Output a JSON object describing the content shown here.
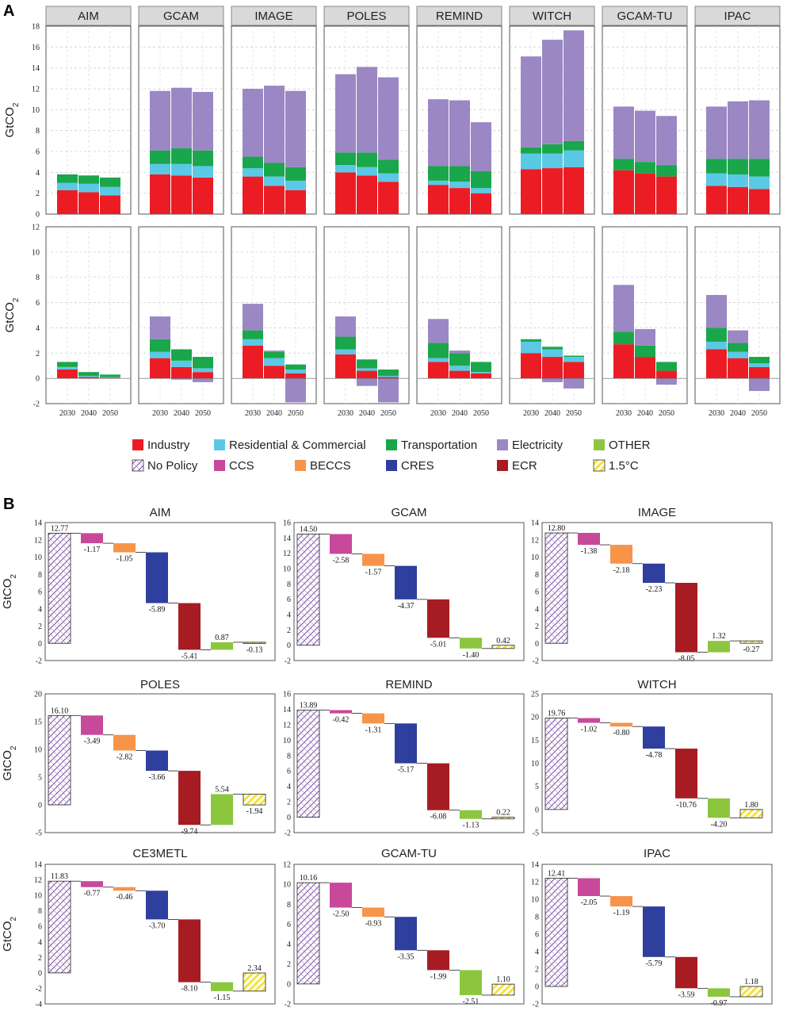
{
  "panel_a_label": "A",
  "panel_b_label": "B",
  "y_axis_label": "GtCO",
  "y_axis_label_sub": "2",
  "colors": {
    "Industry": "#ec1c24",
    "Residential & Commercial": "#5bc8e6",
    "Transportation": "#1aa64a",
    "Electricity": "#9b87c4",
    "OTHER": "#8cc63f",
    "CCS": "#c8489a",
    "BECCS": "#f7944a",
    "CRES": "#2e3f9e",
    "ECR": "#a61c22",
    "No Policy": "#5a2d82",
    "1.5°C": "#f3e33a"
  },
  "legend": [
    [
      "Industry",
      "Residential & Commercial",
      "Transportation",
      "Electricity",
      "OTHER"
    ],
    [
      "No Policy",
      "CCS",
      "BECCS",
      "CRES",
      "ECR",
      "1.5°C"
    ]
  ],
  "chart_data": [
    {
      "id": "A-top",
      "type": "bar",
      "stacked": true,
      "models": [
        "AIM",
        "GCAM",
        "IMAGE",
        "POLES",
        "REMIND",
        "WITCH",
        "GCAM-TU",
        "IPAC"
      ],
      "categories": [
        "2030",
        "2040",
        "2050"
      ],
      "ylim": [
        0,
        18
      ],
      "yticks": [
        0,
        2,
        4,
        6,
        8,
        10,
        12,
        14,
        16,
        18
      ],
      "ylabel": "GtCO2",
      "series_order": [
        "Industry",
        "Residential & Commercial",
        "Transportation",
        "Electricity"
      ],
      "values": {
        "AIM": [
          [
            2.3,
            0.7,
            0.8,
            0
          ],
          [
            2.1,
            0.8,
            0.8,
            0
          ],
          [
            1.8,
            0.8,
            0.9,
            0
          ]
        ],
        "GCAM": [
          [
            3.8,
            1.0,
            1.3,
            5.7
          ],
          [
            3.7,
            1.1,
            1.5,
            5.8
          ],
          [
            3.5,
            1.1,
            1.5,
            5.6
          ]
        ],
        "IMAGE": [
          [
            3.6,
            0.8,
            1.1,
            6.5
          ],
          [
            2.7,
            0.9,
            1.3,
            7.4
          ],
          [
            2.3,
            0.9,
            1.3,
            7.3
          ]
        ],
        "POLES": [
          [
            4.0,
            0.7,
            1.2,
            7.5
          ],
          [
            3.7,
            0.8,
            1.4,
            8.2
          ],
          [
            3.1,
            0.8,
            1.3,
            7.9
          ]
        ],
        "REMIND": [
          [
            2.8,
            0.4,
            1.4,
            6.4
          ],
          [
            2.5,
            0.6,
            1.5,
            6.3
          ],
          [
            2.0,
            0.5,
            1.6,
            4.7
          ]
        ],
        "WITCH": [
          [
            4.3,
            1.5,
            0.6,
            8.7
          ],
          [
            4.4,
            1.4,
            0.9,
            10.0
          ],
          [
            4.5,
            1.6,
            0.9,
            10.6
          ]
        ],
        "GCAM-TU": [
          [
            4.2,
            0,
            1.1,
            5.0
          ],
          [
            3.9,
            0,
            1.1,
            4.9
          ],
          [
            3.6,
            0,
            1.1,
            4.7
          ]
        ],
        "IPAC": [
          [
            2.7,
            1.2,
            1.4,
            5.0
          ],
          [
            2.6,
            1.2,
            1.5,
            5.5
          ],
          [
            2.4,
            1.2,
            1.7,
            5.6
          ]
        ]
      }
    },
    {
      "id": "A-bottom",
      "type": "bar",
      "stacked": true,
      "models": [
        "AIM",
        "GCAM",
        "IMAGE",
        "POLES",
        "REMIND",
        "WITCH",
        "GCAM-TU",
        "IPAC"
      ],
      "categories": [
        "2030",
        "2040",
        "2050"
      ],
      "ylim": [
        -2,
        12
      ],
      "yticks": [
        -2,
        0,
        2,
        4,
        6,
        8,
        10,
        12
      ],
      "ylabel": "GtCO2",
      "series_order": [
        "Industry",
        "Residential & Commercial",
        "Transportation",
        "Electricity"
      ],
      "values": {
        "AIM": [
          [
            0.7,
            0.2,
            0.4,
            0
          ],
          [
            0.1,
            0.1,
            0.3,
            0
          ],
          [
            0.05,
            0.05,
            0.2,
            0
          ]
        ],
        "GCAM": [
          [
            1.6,
            0.5,
            1.0,
            1.8
          ],
          [
            0.9,
            0.5,
            0.9,
            -0.1
          ],
          [
            0.5,
            0.3,
            0.9,
            -0.3
          ]
        ],
        "IMAGE": [
          [
            2.6,
            0.5,
            0.7,
            2.1
          ],
          [
            1.0,
            0.6,
            0.5,
            0.1
          ],
          [
            0.4,
            0.3,
            0.4,
            -1.9
          ]
        ],
        "POLES": [
          [
            1.9,
            0.4,
            1.0,
            1.6
          ],
          [
            0.6,
            0.2,
            0.7,
            -0.6
          ],
          [
            0.1,
            0.1,
            0.5,
            -1.9
          ]
        ],
        "REMIND": [
          [
            1.3,
            0.3,
            1.2,
            1.9
          ],
          [
            0.6,
            0.4,
            1.0,
            0.2
          ],
          [
            0.4,
            0.1,
            0.8,
            0
          ]
        ],
        "WITCH": [
          [
            2.0,
            0.9,
            0.2,
            0
          ],
          [
            1.7,
            0.6,
            0.2,
            -0.3
          ],
          [
            1.3,
            0.4,
            0.1,
            -0.8
          ]
        ],
        "GCAM-TU": [
          [
            2.7,
            0,
            1.0,
            3.7
          ],
          [
            1.7,
            0,
            0.9,
            1.3
          ],
          [
            0.6,
            0,
            0.7,
            -0.5
          ]
        ],
        "IPAC": [
          [
            2.3,
            0.6,
            1.1,
            2.6
          ],
          [
            1.6,
            0.5,
            0.7,
            1.0
          ],
          [
            0.9,
            0.3,
            0.5,
            -1.0
          ]
        ]
      }
    },
    {
      "id": "B",
      "type": "waterfall",
      "steps": [
        "No Policy",
        "CCS",
        "BECCS",
        "CRES",
        "ECR",
        "OTHER",
        "1.5°C"
      ],
      "panels": [
        {
          "title": "AIM",
          "ylim": [
            -2,
            14
          ],
          "yticks": [
            -2,
            0,
            2,
            4,
            6,
            8,
            10,
            12,
            14
          ],
          "values": [
            12.77,
            -1.17,
            -1.05,
            -5.89,
            -5.41,
            0.87,
            -0.13
          ],
          "labels": [
            "12.77",
            "-1.17",
            "-1.05",
            "-5.89",
            "-5.41",
            "0.87",
            "-0.13"
          ]
        },
        {
          "title": "GCAM",
          "ylim": [
            -2,
            16
          ],
          "yticks": [
            -2,
            0,
            2,
            4,
            6,
            8,
            10,
            12,
            14,
            16
          ],
          "values": [
            14.5,
            -2.58,
            -1.57,
            -4.37,
            -5.01,
            -1.4,
            0.42
          ],
          "labels": [
            "14.50",
            "-2.58",
            "-1.57",
            "-4.37",
            "-5.01",
            "-1.40",
            "0.42"
          ]
        },
        {
          "title": "IMAGE",
          "ylim": [
            -2,
            14
          ],
          "yticks": [
            -2,
            0,
            2,
            4,
            6,
            8,
            10,
            12,
            14
          ],
          "values": [
            12.8,
            -1.38,
            -2.18,
            -2.23,
            -8.05,
            1.32,
            -0.27
          ],
          "labels": [
            "12.80",
            "-1.38",
            "-2.18",
            "-2.23",
            "-8.05",
            "1.32",
            "-0.27"
          ]
        },
        {
          "title": "POLES",
          "ylim": [
            -5,
            20
          ],
          "yticks": [
            -5,
            0,
            5,
            10,
            15,
            20
          ],
          "values": [
            16.1,
            -3.49,
            -2.82,
            -3.66,
            -9.74,
            5.54,
            -1.94
          ],
          "labels": [
            "16.10",
            "-3.49",
            "-2.82",
            "-3.66",
            "-9.74",
            "5.54",
            "-1.94"
          ]
        },
        {
          "title": "REMIND",
          "ylim": [
            -2,
            16
          ],
          "yticks": [
            -2,
            0,
            2,
            4,
            6,
            8,
            10,
            12,
            14,
            16
          ],
          "values": [
            13.89,
            -0.42,
            -1.31,
            -5.17,
            -6.08,
            -1.13,
            0.22
          ],
          "labels": [
            "13.89",
            "-0.42",
            "-1.31",
            "-5.17",
            "-6.08",
            "-1.13",
            "0.22"
          ]
        },
        {
          "title": "WITCH",
          "ylim": [
            -5,
            25
          ],
          "yticks": [
            -5,
            0,
            5,
            10,
            15,
            20,
            25
          ],
          "values": [
            19.76,
            -1.02,
            -0.8,
            -4.78,
            -10.76,
            -4.2,
            1.8
          ],
          "labels": [
            "19.76",
            "-1.02",
            "-0.80",
            "-4.78",
            "-10.76",
            "-4.20",
            "1.80"
          ]
        },
        {
          "title": "CE3METL",
          "ylim": [
            -4,
            14
          ],
          "yticks": [
            -4,
            -2,
            0,
            2,
            4,
            6,
            8,
            10,
            12,
            14
          ],
          "values": [
            11.83,
            -0.77,
            -0.46,
            -3.7,
            -8.1,
            -1.15,
            2.34
          ],
          "labels": [
            "11.83",
            "-0.77",
            "-0.46",
            "-3.70",
            "-8.10",
            "-1.15",
            "2.34"
          ]
        },
        {
          "title": "GCAM-TU",
          "ylim": [
            -2,
            12
          ],
          "yticks": [
            -2,
            0,
            2,
            4,
            6,
            8,
            10,
            12
          ],
          "values": [
            10.16,
            -2.5,
            -0.93,
            -3.35,
            -1.99,
            -2.51,
            1.1
          ],
          "labels": [
            "10.16",
            "-2.50",
            "-0.93",
            "-3.35",
            "-1.99",
            "-2.51",
            "1.10"
          ]
        },
        {
          "title": "IPAC",
          "ylim": [
            -2,
            14
          ],
          "yticks": [
            -2,
            0,
            2,
            4,
            6,
            8,
            10,
            12,
            14
          ],
          "values": [
            12.41,
            -2.05,
            -1.19,
            -5.79,
            -3.59,
            -0.97,
            1.18
          ],
          "labels": [
            "12.41",
            "-2.05",
            "-1.19",
            "-5.79",
            "-3.59",
            "-0.97",
            "1.18"
          ]
        }
      ]
    }
  ]
}
